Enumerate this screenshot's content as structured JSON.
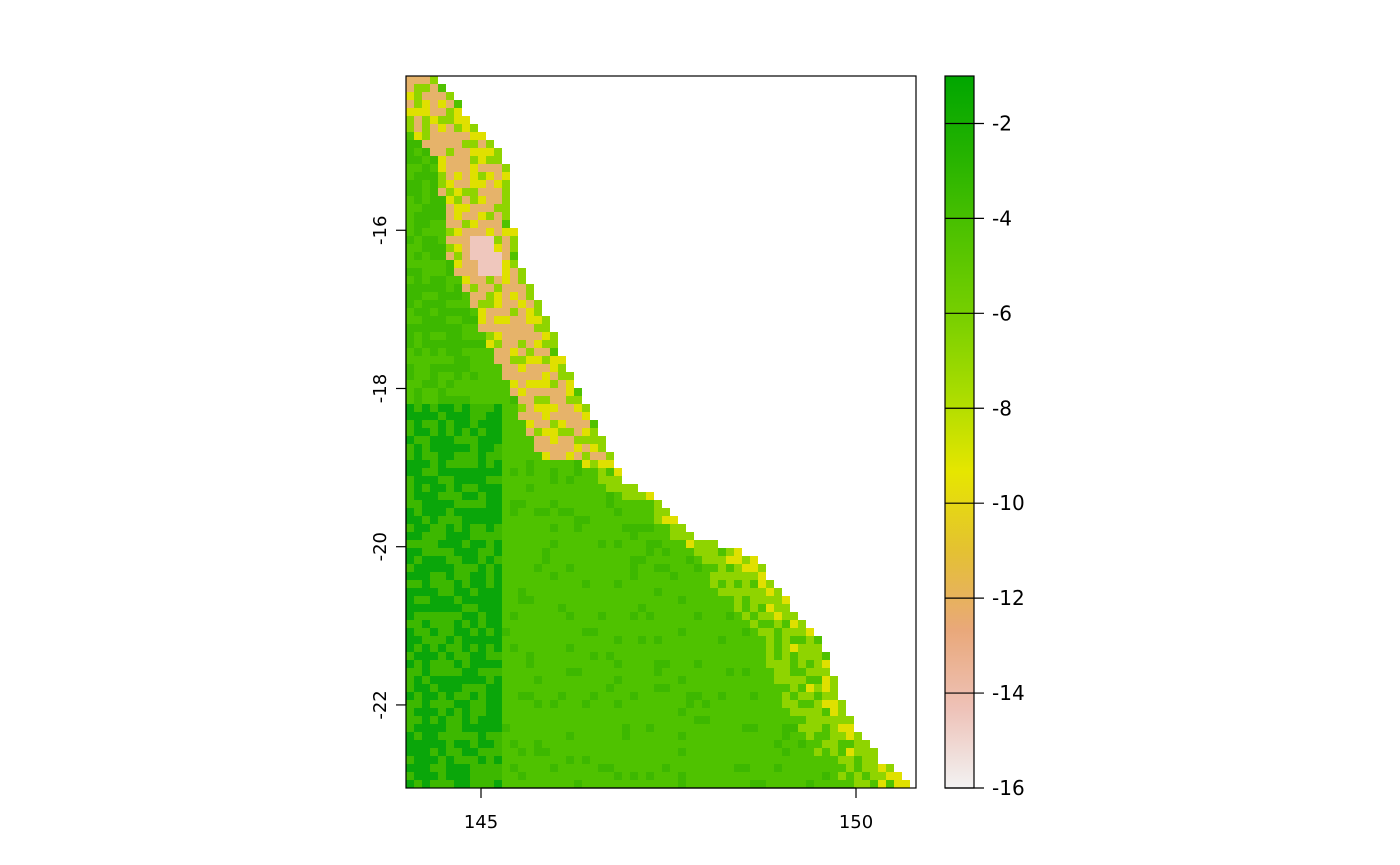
{
  "map": {
    "x_axis": {
      "ticks": [
        145,
        150
      ],
      "range": [
        144,
        150.8
      ]
    },
    "y_axis": {
      "ticks": [
        -16,
        -18,
        -20,
        -22
      ],
      "range": [
        -23.05,
        -14.05
      ]
    },
    "legend": {
      "range": [
        -16,
        -1
      ],
      "ticks": [
        -2,
        -4,
        -6,
        -8,
        -10,
        -12,
        -14,
        -16
      ],
      "colors": [
        "#f2f2f2",
        "#eec2b8",
        "#e9a87a",
        "#e4c132",
        "#e6e600",
        "#a8dc00",
        "#76cf00",
        "#4fc200",
        "#25b300",
        "#00a600"
      ]
    },
    "colors": {
      "lowland_dark": "#0aa60a",
      "lowland": "#3db800",
      "plain": "#4fc200",
      "coast": "#8fd400",
      "yellow": "#e0e000",
      "ridge": "#e6b36a",
      "peak": "#efc7bd"
    }
  }
}
